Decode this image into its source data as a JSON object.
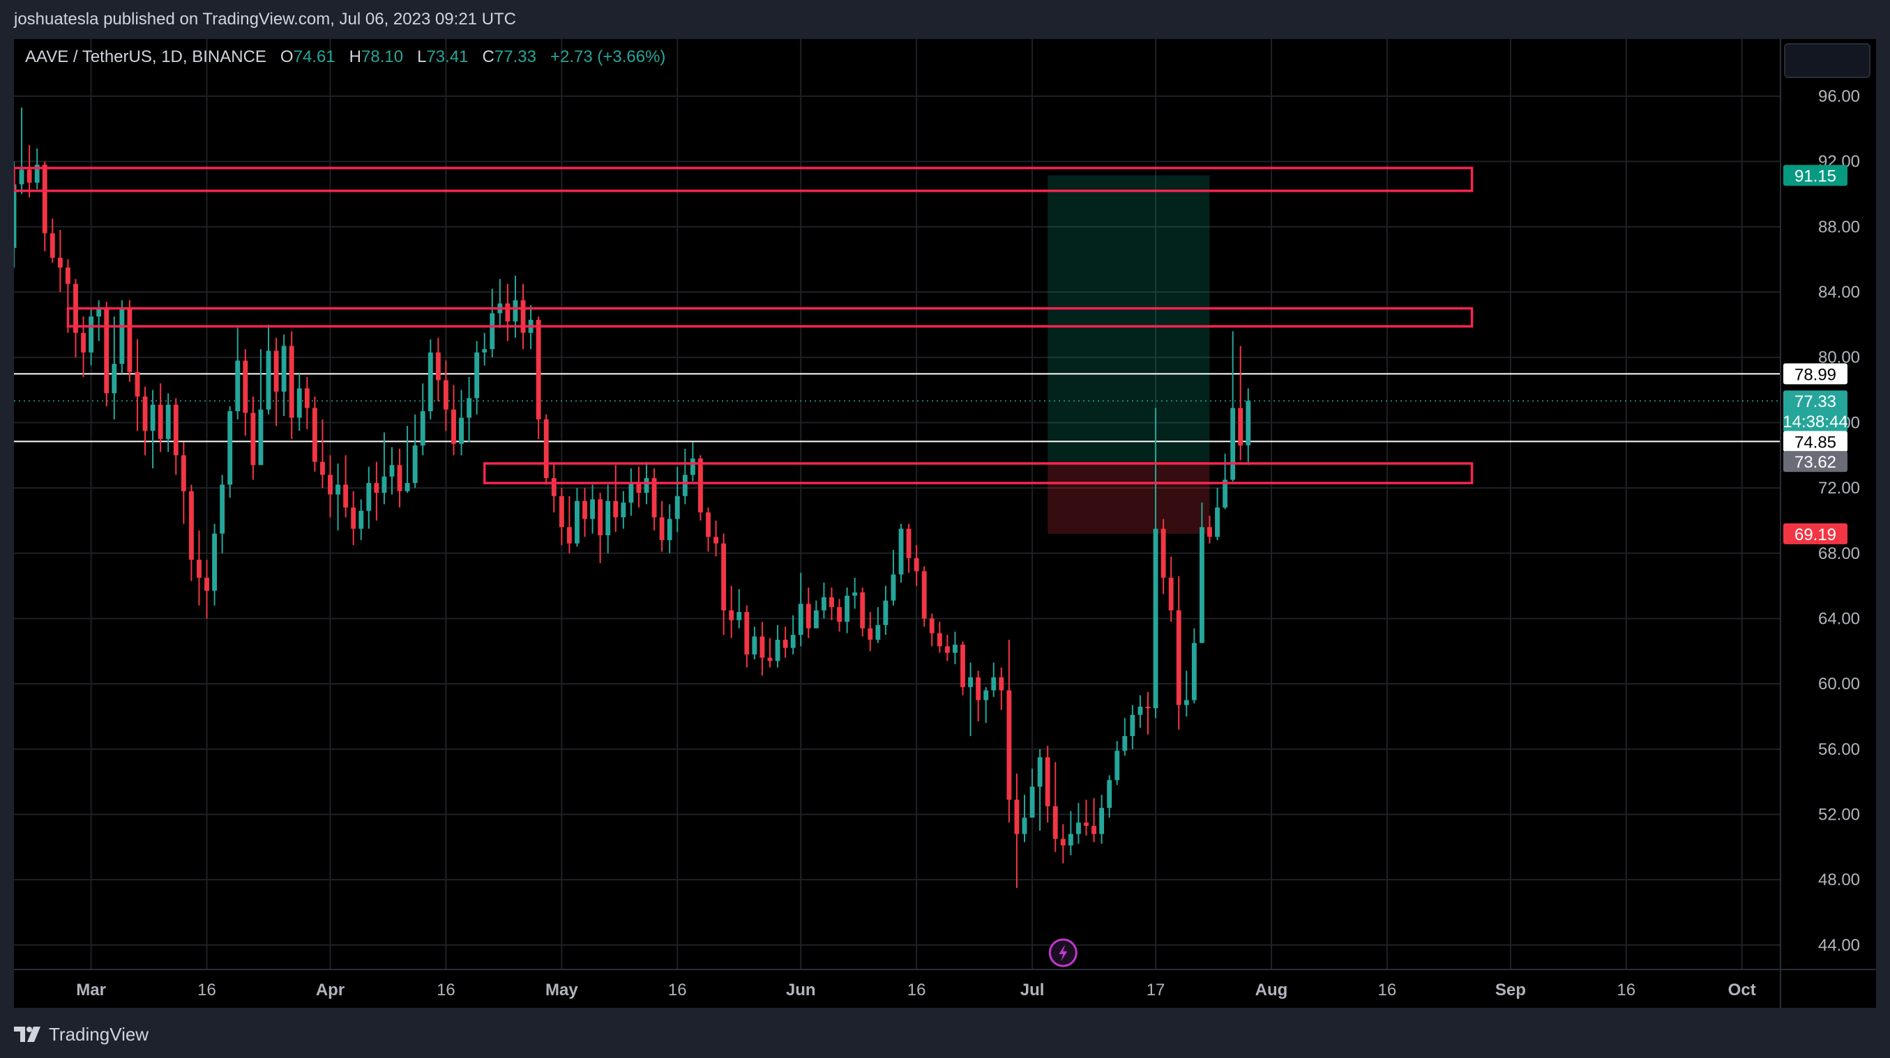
{
  "header": {
    "published": "joshuatesla published on TradingView.com, Jul 06, 2023 09:21 UTC"
  },
  "legend": {
    "symbol": "AAVE / TetherUS, 1D, BINANCE",
    "o_label": "O",
    "o": "74.61",
    "h_label": "H",
    "h": "78.10",
    "l_label": "L",
    "l": "73.41",
    "c_label": "C",
    "c": "77.33",
    "change": "+2.73 (+3.66%)"
  },
  "footer": {
    "brand": "TradingView"
  },
  "colors": {
    "up": "#26a69a",
    "down": "#f23645",
    "zone": "#f7264f",
    "bg": "#000000",
    "grid": "#1f2126",
    "target": "#089981",
    "stop": "#f23645"
  },
  "chart_data": {
    "type": "candlestick",
    "x_range": [
      "2023-02-19",
      "2023-10-06"
    ],
    "y_range": [
      42.5,
      99.5
    ],
    "y_ticks": [
      "96.00",
      "92.00",
      "88.00",
      "84.00",
      "80.00",
      "76.00",
      "72.00",
      "68.00",
      "64.00",
      "60.00",
      "56.00",
      "52.00",
      "48.00",
      "44.00"
    ],
    "x_ticks": [
      {
        "date": "2023-03-01",
        "label": "Mar"
      },
      {
        "date": "2023-03-16",
        "label": "16"
      },
      {
        "date": "2023-04-01",
        "label": "Apr"
      },
      {
        "date": "2023-04-16",
        "label": "16"
      },
      {
        "date": "2023-05-01",
        "label": "May"
      },
      {
        "date": "2023-05-16",
        "label": "16"
      },
      {
        "date": "2023-06-01",
        "label": "Jun"
      },
      {
        "date": "2023-06-16",
        "label": "16"
      },
      {
        "date": "2023-07-01",
        "label": "Jul"
      },
      {
        "date": "2023-07-17",
        "label": "17"
      },
      {
        "date": "2023-08-01",
        "label": "Aug"
      },
      {
        "date": "2023-08-16",
        "label": "16"
      },
      {
        "date": "2023-09-01",
        "label": "Sep"
      },
      {
        "date": "2023-09-16",
        "label": "16"
      },
      {
        "date": "2023-10-01",
        "label": "Oct"
      }
    ],
    "first_candle_date": "2023-02-19",
    "candles": [
      [
        86.7,
        90.6,
        92,
        85.5
      ],
      [
        90.6,
        91.5,
        95.3,
        90
      ],
      [
        91.5,
        90.7,
        93,
        89.8
      ],
      [
        90.7,
        91.8,
        92.8,
        90.3
      ],
      [
        91.8,
        87.6,
        92,
        86.5
      ],
      [
        87.6,
        86.1,
        88.5,
        85.8
      ],
      [
        86.1,
        85.5,
        87.8,
        84
      ],
      [
        85.5,
        84.5,
        86,
        81.5
      ],
      [
        84.5,
        81.5,
        84.8,
        80
      ],
      [
        81.5,
        80.3,
        82.5,
        78.8
      ],
      [
        80.3,
        82.5,
        83,
        79.5
      ],
      [
        82.5,
        83,
        83.5,
        81
      ],
      [
        83,
        77.8,
        83.4,
        77
      ],
      [
        77.8,
        79.6,
        82.5,
        76.2
      ],
      [
        79.6,
        83,
        83.5,
        79
      ],
      [
        83,
        79.1,
        83.5,
        78.5
      ],
      [
        79.1,
        77.6,
        81.1,
        75.5
      ],
      [
        77.6,
        75.5,
        78.2,
        74
      ],
      [
        75.5,
        77.1,
        78,
        73.2
      ],
      [
        77.1,
        75,
        78.4,
        74.2
      ],
      [
        75,
        77.1,
        77.8,
        74.2
      ],
      [
        77.1,
        74,
        77.5,
        72.8
      ],
      [
        74,
        71.8,
        74.8,
        69.8
      ],
      [
        71.8,
        67.6,
        72.2,
        66.3
      ],
      [
        67.6,
        66.5,
        69.4,
        64.8
      ],
      [
        66.5,
        65.7,
        67.6,
        64
      ],
      [
        65.7,
        69.2,
        69.8,
        64.8
      ],
      [
        69.2,
        72.2,
        72.8,
        68
      ],
      [
        72.2,
        76.7,
        77,
        71.4
      ],
      [
        76.7,
        79.8,
        81.8,
        76.2
      ],
      [
        79.8,
        76.6,
        80.5,
        75.2
      ],
      [
        76.6,
        73.4,
        77.6,
        72.5
      ],
      [
        73.4,
        76.8,
        80.5,
        73.4
      ],
      [
        76.8,
        80.4,
        82,
        76.5
      ],
      [
        80.4,
        77.9,
        81.2,
        75.8
      ],
      [
        77.9,
        80.7,
        81.4,
        76.4
      ],
      [
        80.7,
        76.3,
        81.6,
        75
      ],
      [
        76.3,
        78.1,
        79,
        75.5
      ],
      [
        78.1,
        76.9,
        78.8,
        75.6
      ],
      [
        76.9,
        73.6,
        77.6,
        73
      ],
      [
        73.6,
        72.8,
        76.2,
        72
      ],
      [
        72.8,
        71.6,
        74,
        70.2
      ],
      [
        71.6,
        72.2,
        73.5,
        69.4
      ],
      [
        72.2,
        70.8,
        74,
        70.2
      ],
      [
        70.8,
        69.5,
        71.8,
        68.5
      ],
      [
        69.5,
        70.6,
        71.3,
        68.8
      ],
      [
        70.6,
        72.3,
        73.3,
        69.5
      ],
      [
        72.3,
        71.7,
        73.6,
        70
      ],
      [
        71.7,
        72.7,
        75.4,
        71
      ],
      [
        72.7,
        73.4,
        74.5,
        71.6
      ],
      [
        73.4,
        71.8,
        74.4,
        70.8
      ],
      [
        71.8,
        72.3,
        75.8,
        71.7
      ],
      [
        72.3,
        74.6,
        76.5,
        72
      ],
      [
        74.6,
        76.7,
        78.4,
        74
      ],
      [
        76.7,
        80.3,
        81.1,
        76.2
      ],
      [
        80.3,
        78.6,
        81.2,
        77.3
      ],
      [
        78.6,
        76.8,
        79.8,
        75.5
      ],
      [
        76.8,
        74.7,
        78.3,
        74
      ],
      [
        74.7,
        76.3,
        78,
        74
      ],
      [
        76.3,
        77.5,
        78.8,
        74.8
      ],
      [
        77.5,
        80.3,
        81,
        76.5
      ],
      [
        80.3,
        80.5,
        81.5,
        79.5
      ],
      [
        80.5,
        82.7,
        84.2,
        80
      ],
      [
        82.7,
        83.3,
        84.8,
        81.8
      ],
      [
        83.3,
        82.2,
        84.5,
        81
      ],
      [
        82.2,
        83.5,
        85,
        81.2
      ],
      [
        83.5,
        81.5,
        84.5,
        80.5
      ],
      [
        81.5,
        82.3,
        83.2,
        80.5
      ],
      [
        82.3,
        76.2,
        82.5,
        75
      ],
      [
        76.2,
        72.6,
        76.5,
        72.2
      ],
      [
        72.6,
        71.5,
        73.5,
        70.5
      ],
      [
        71.5,
        69.6,
        72,
        68.5
      ],
      [
        69.6,
        68.6,
        71.5,
        68
      ],
      [
        68.6,
        71.2,
        72,
        68.4
      ],
      [
        71.2,
        70.1,
        72,
        69
      ],
      [
        70.1,
        71.3,
        72.2,
        69.2
      ],
      [
        71.3,
        69.1,
        71.7,
        67.4
      ],
      [
        69.1,
        71.2,
        72.2,
        68
      ],
      [
        71.2,
        70.2,
        73.4,
        69.3
      ],
      [
        70.2,
        71.1,
        71.8,
        69.5
      ],
      [
        71.1,
        72.3,
        73.2,
        70.3
      ],
      [
        72.3,
        71.7,
        73.3,
        70.8
      ],
      [
        71.7,
        72.6,
        73.6,
        71
      ],
      [
        72.6,
        70.2,
        73.2,
        69.4
      ],
      [
        70.2,
        68.8,
        71.2,
        68.1
      ],
      [
        68.8,
        70.1,
        71,
        68
      ],
      [
        70.1,
        71.5,
        73.3,
        69.3
      ],
      [
        71.5,
        72.8,
        74.4,
        71
      ],
      [
        72.8,
        73.8,
        74.8,
        72.4
      ],
      [
        73.8,
        70.5,
        74,
        70
      ],
      [
        70.5,
        69,
        70.8,
        68.1
      ],
      [
        69,
        68.6,
        70,
        67.8
      ],
      [
        68.6,
        64.5,
        69.2,
        63
      ],
      [
        64.5,
        63.9,
        66,
        62.8
      ],
      [
        63.9,
        64.4,
        65.8,
        63.4
      ],
      [
        64.4,
        61.8,
        64.8,
        61
      ],
      [
        61.8,
        62.9,
        63.5,
        61.5
      ],
      [
        62.9,
        61.6,
        63.8,
        60.5
      ],
      [
        61.6,
        61.4,
        62.8,
        61
      ],
      [
        61.4,
        62.7,
        63.6,
        61
      ],
      [
        62.7,
        62.2,
        63.5,
        61.6
      ],
      [
        62.2,
        63,
        64.2,
        61.8
      ],
      [
        63,
        64.9,
        66.8,
        62.3
      ],
      [
        64.9,
        63.4,
        65.9,
        62.8
      ],
      [
        63.4,
        64.5,
        65.1,
        63.5
      ],
      [
        64.5,
        65.3,
        66.2,
        64
      ],
      [
        65.3,
        64.7,
        65.9,
        63.9
      ],
      [
        64.7,
        63.8,
        65.2,
        63.2
      ],
      [
        63.8,
        65.4,
        65.9,
        63.1
      ],
      [
        65.4,
        65.6,
        66.5,
        64.6
      ],
      [
        65.6,
        63.4,
        65.9,
        62.9
      ],
      [
        63.4,
        62.7,
        64.4,
        62
      ],
      [
        62.7,
        63.6,
        64.7,
        62.5
      ],
      [
        63.6,
        65.1,
        66,
        63
      ],
      [
        65.1,
        66.7,
        68.2,
        64.8
      ],
      [
        66.7,
        69.5,
        69.8,
        66.2
      ],
      [
        69.5,
        67.7,
        69.8,
        66.8
      ],
      [
        67.7,
        66.9,
        68.5,
        66
      ],
      [
        66.9,
        64,
        67.2,
        63.5
      ],
      [
        64,
        63.1,
        64.3,
        62.3
      ],
      [
        63.1,
        62.3,
        63.8,
        61.9
      ],
      [
        62.3,
        61.9,
        63,
        61.4
      ],
      [
        61.9,
        62.4,
        63.2,
        61.2
      ],
      [
        62.4,
        59.8,
        62.6,
        59.3
      ],
      [
        59.8,
        60.4,
        61.3,
        56.8
      ],
      [
        60.4,
        59,
        60.8,
        57.7
      ],
      [
        59,
        59.6,
        59.8,
        57.6
      ],
      [
        59.6,
        60.4,
        61.3,
        59.2
      ],
      [
        60.4,
        59.6,
        61,
        58.4
      ],
      [
        59.6,
        52.9,
        62.7,
        51.5
      ],
      [
        52.9,
        50.8,
        54.5,
        47.5
      ],
      [
        50.8,
        51.8,
        53.2,
        50.3
      ],
      [
        51.8,
        53.7,
        54.8,
        52.2
      ],
      [
        53.7,
        55.5,
        56,
        51
      ],
      [
        55.5,
        52.5,
        56.2,
        51.5
      ],
      [
        52.5,
        50.5,
        55.2,
        49.7
      ],
      [
        50.5,
        50.1,
        51.4,
        49
      ],
      [
        50.1,
        50.8,
        52.2,
        49.5
      ],
      [
        50.8,
        51.5,
        52.7,
        50.2
      ],
      [
        51.5,
        51.3,
        52.9,
        50.7
      ],
      [
        51.3,
        50.8,
        53,
        50.3
      ],
      [
        50.8,
        52.4,
        53.2,
        50.2
      ],
      [
        52.4,
        54.1,
        54.4,
        51.8
      ],
      [
        54.1,
        55.9,
        56.5,
        53.8
      ],
      [
        55.9,
        56.8,
        57.9,
        55.6
      ],
      [
        56.8,
        58.1,
        58.7,
        56
      ],
      [
        58.1,
        58.6,
        59.3,
        57.3
      ],
      [
        58.6,
        58.5,
        59.5,
        56.9
      ],
      [
        58.5,
        69.5,
        76.9,
        57.9
      ],
      [
        69.5,
        66.5,
        70.1,
        65.5
      ],
      [
        66.5,
        64.5,
        67.8,
        63.8
      ],
      [
        64.5,
        58.7,
        66.6,
        57.2
      ],
      [
        58.7,
        59,
        60.8,
        58
      ],
      [
        59,
        62.5,
        63.4,
        58.8
      ],
      [
        62.5,
        69.6,
        71.1,
        62.5
      ],
      [
        69.6,
        69,
        70.3,
        68.6
      ],
      [
        69,
        70.8,
        72,
        68.8
      ],
      [
        70.8,
        72.5,
        74.1,
        70.7
      ],
      [
        72.5,
        76.9,
        81.6,
        72.4
      ],
      [
        76.9,
        74.6,
        80.7,
        73.7
      ],
      [
        74.61,
        77.33,
        78.1,
        73.41
      ]
    ],
    "zones": [
      {
        "from": "2023-02-19",
        "to": "2023-08-27",
        "top": 91.6,
        "bottom": 90.2
      },
      {
        "from": "2023-02-26",
        "to": "2023-08-27",
        "top": 83.0,
        "bottom": 81.9
      },
      {
        "from": "2023-04-21",
        "to": "2023-08-27",
        "top": 73.5,
        "bottom": 72.3
      }
    ],
    "h_lines": [
      78.99,
      74.85
    ],
    "last_price": 77.33,
    "position": {
      "from": "2023-07-03",
      "to": "2023-07-24",
      "entry": 73.62,
      "target": 91.15,
      "stop": 69.19
    },
    "price_labels": [
      {
        "value": 91.15,
        "text": "91.15",
        "bg": "#089981",
        "fg": "#ffffff"
      },
      {
        "value": 78.99,
        "text": "78.99",
        "bg": "#ffffff",
        "fg": "#000000"
      },
      {
        "value": 77.33,
        "text": "77.33",
        "sub": "14:38:44",
        "bg": "#26a69a",
        "fg": "#ffffff"
      },
      {
        "value": 74.85,
        "text": "74.85",
        "bg": "#ffffff",
        "fg": "#000000"
      },
      {
        "value": 73.62,
        "text": "73.62",
        "bg": "#6a6d78",
        "fg": "#ffffff"
      },
      {
        "value": 69.19,
        "text": "69.19",
        "bg": "#f23645",
        "fg": "#ffffff"
      }
    ],
    "event_marker": {
      "date": "2023-07-05",
      "icon": "lightning-icon"
    }
  }
}
